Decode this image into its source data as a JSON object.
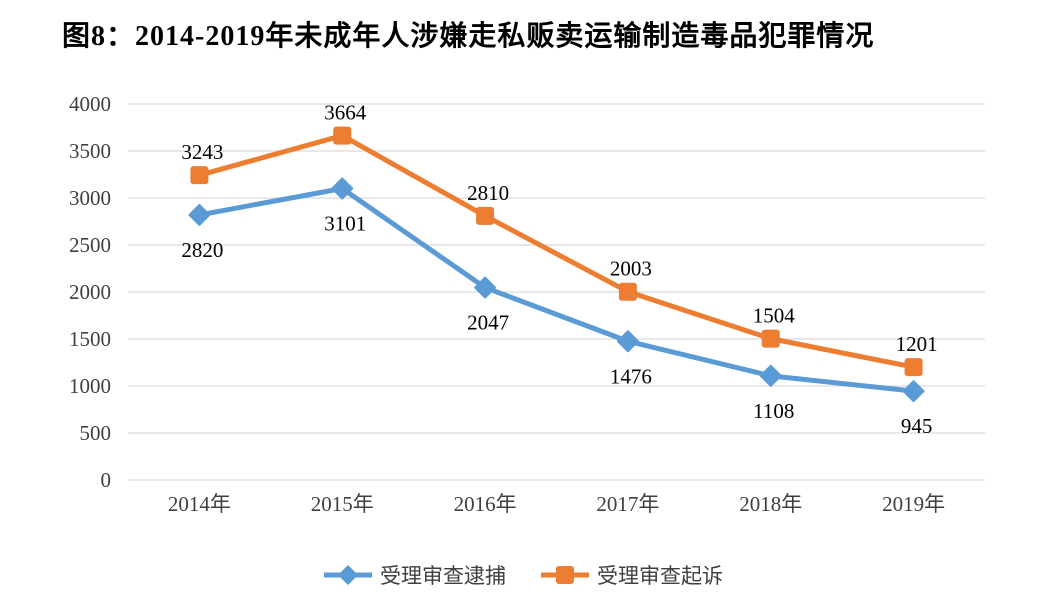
{
  "title": "图8：2014-2019年未成年人涉嫌走私贩卖运输制造毒品犯罪情况",
  "chart_data": {
    "type": "line",
    "title": "图8：2014-2019年未成年人涉嫌走私贩卖运输制造毒品犯罪情况",
    "categories": [
      "2014年",
      "2015年",
      "2016年",
      "2017年",
      "2018年",
      "2019年"
    ],
    "series": [
      {
        "name": "受理审查逮捕",
        "values": [
          2820,
          3101,
          2047,
          1476,
          1108,
          945
        ],
        "color": "#5B9BD5",
        "marker": "diamond",
        "label_position": "below"
      },
      {
        "name": "受理审查起诉",
        "values": [
          3243,
          3664,
          2810,
          2003,
          1504,
          1201
        ],
        "color": "#ED7D31",
        "marker": "square",
        "label_position": "above"
      }
    ],
    "xlabel": "",
    "ylabel": "",
    "ylim": [
      0,
      4000
    ],
    "y_ticks": [
      0,
      500,
      1000,
      1500,
      2000,
      2500,
      3000,
      3500,
      4000
    ],
    "grid": true,
    "legend_position": "bottom",
    "colors": {
      "gridline": "#D9D9D9",
      "axis_text": "#404040",
      "data_label": "#000000",
      "background": "#ffffff"
    }
  }
}
